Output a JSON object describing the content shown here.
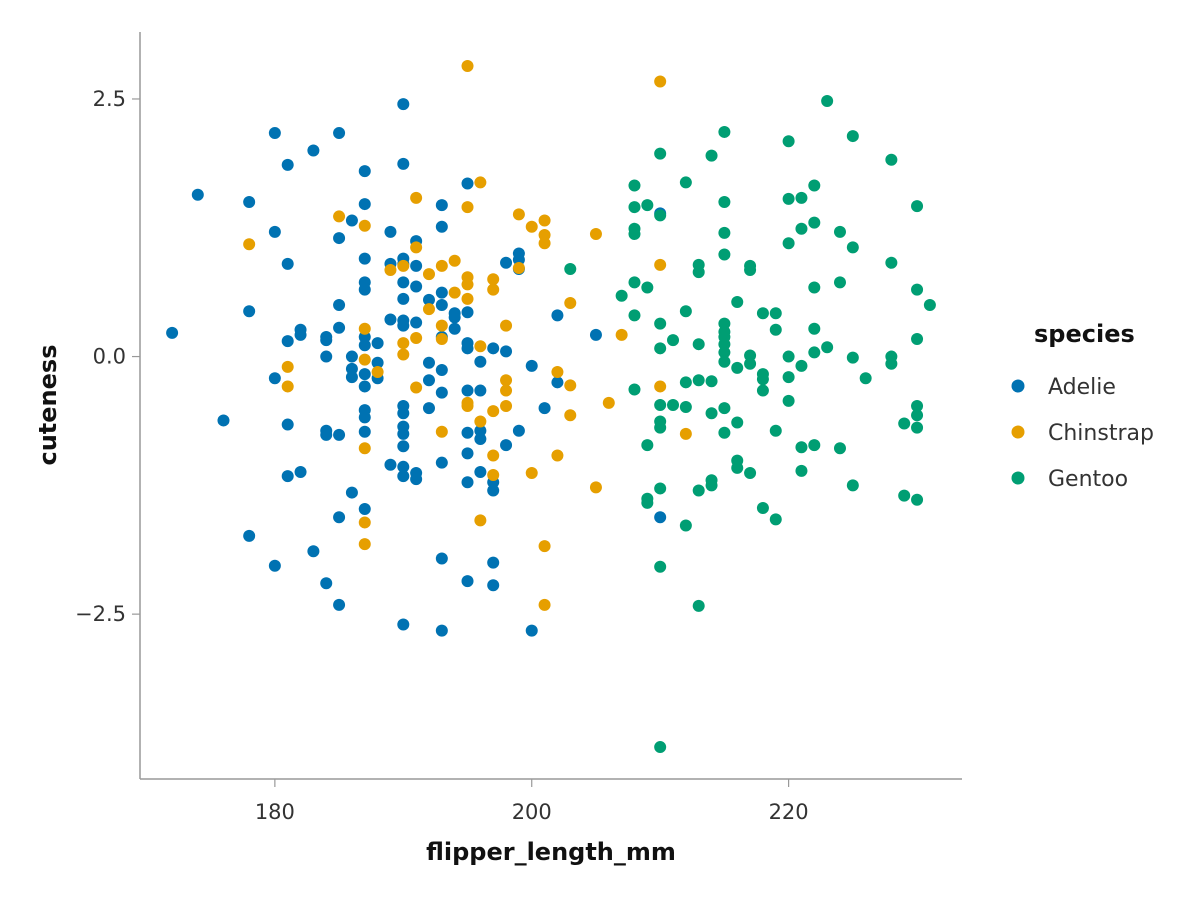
{
  "chart_data": {
    "type": "scatter",
    "title": "",
    "xlabel": "flipper_length_mm",
    "ylabel": "cuteness",
    "xlim": [
      169.5,
      233.5
    ],
    "ylim": [
      -4.1,
      3.15
    ],
    "xticks": [
      180,
      200,
      220
    ],
    "yticks": [
      2.5,
      0.0,
      -2.5
    ],
    "xtick_labels": [
      "180",
      "200",
      "220"
    ],
    "ytick_labels": [
      "2.5",
      "0.0",
      "−2.5"
    ],
    "grid": false,
    "legend": {
      "title": "species",
      "position": "right"
    },
    "series": [
      {
        "name": "Adelie",
        "color": "#0072B2",
        "points": [
          [
            172,
            0.23
          ],
          [
            174,
            1.57
          ],
          [
            176,
            -0.62
          ],
          [
            178,
            1.5
          ],
          [
            178,
            0.44
          ],
          [
            178,
            -1.74
          ],
          [
            180,
            2.17
          ],
          [
            180,
            1.21
          ],
          [
            180,
            -0.21
          ],
          [
            180,
            -2.03
          ],
          [
            181,
            1.86
          ],
          [
            181,
            0.9
          ],
          [
            181,
            0.15
          ],
          [
            181,
            -0.66
          ],
          [
            181,
            -1.16
          ],
          [
            182,
            0.26
          ],
          [
            182,
            0.21
          ],
          [
            182,
            -1.12
          ],
          [
            183,
            2.0
          ],
          [
            183,
            -1.89
          ],
          [
            184,
            0.19
          ],
          [
            184,
            0.16
          ],
          [
            184,
            0.0
          ],
          [
            184,
            -0.72
          ],
          [
            184,
            -0.76
          ],
          [
            184,
            -2.2
          ],
          [
            185,
            2.17
          ],
          [
            185,
            1.15
          ],
          [
            185,
            0.5
          ],
          [
            185,
            0.28
          ],
          [
            185,
            -0.76
          ],
          [
            185,
            -1.56
          ],
          [
            185,
            -2.41
          ],
          [
            186,
            1.32
          ],
          [
            186,
            0.0
          ],
          [
            186,
            -0.12
          ],
          [
            186,
            -0.2
          ],
          [
            186,
            -1.32
          ],
          [
            187,
            1.8
          ],
          [
            187,
            1.48
          ],
          [
            187,
            0.95
          ],
          [
            187,
            0.72
          ],
          [
            187,
            0.65
          ],
          [
            187,
            0.19
          ],
          [
            187,
            0.11
          ],
          [
            187,
            -0.17
          ],
          [
            187,
            -0.29
          ],
          [
            187,
            -0.52
          ],
          [
            187,
            -0.59
          ],
          [
            187,
            -0.73
          ],
          [
            187,
            -1.48
          ],
          [
            188,
            0.13
          ],
          [
            188,
            -0.06
          ],
          [
            188,
            -0.21
          ],
          [
            189,
            1.21
          ],
          [
            189,
            0.9
          ],
          [
            189,
            0.36
          ],
          [
            189,
            -1.05
          ],
          [
            190,
            2.45
          ],
          [
            190,
            1.87
          ],
          [
            190,
            0.95
          ],
          [
            190,
            0.9
          ],
          [
            190,
            0.72
          ],
          [
            190,
            0.56
          ],
          [
            190,
            0.35
          ],
          [
            190,
            0.3
          ],
          [
            190,
            -0.48
          ],
          [
            190,
            -0.55
          ],
          [
            190,
            -0.68
          ],
          [
            190,
            -0.75
          ],
          [
            190,
            -0.87
          ],
          [
            190,
            -1.07
          ],
          [
            190,
            -1.16
          ],
          [
            190,
            -2.6
          ],
          [
            191,
            1.12
          ],
          [
            191,
            0.88
          ],
          [
            191,
            0.68
          ],
          [
            191,
            0.33
          ],
          [
            191,
            -1.13
          ],
          [
            191,
            -1.19
          ],
          [
            192,
            0.55
          ],
          [
            192,
            -0.06
          ],
          [
            192,
            -0.23
          ],
          [
            192,
            -0.5
          ],
          [
            193,
            1.47
          ],
          [
            193,
            1.26
          ],
          [
            193,
            0.62
          ],
          [
            193,
            0.5
          ],
          [
            193,
            0.19
          ],
          [
            193,
            -0.13
          ],
          [
            193,
            -0.35
          ],
          [
            193,
            -1.03
          ],
          [
            193,
            -1.96
          ],
          [
            193,
            -2.66
          ],
          [
            194,
            0.42
          ],
          [
            194,
            0.38
          ],
          [
            194,
            0.27
          ],
          [
            195,
            1.68
          ],
          [
            195,
            0.43
          ],
          [
            195,
            0.13
          ],
          [
            195,
            0.08
          ],
          [
            195,
            -0.33
          ],
          [
            195,
            -0.74
          ],
          [
            195,
            -0.94
          ],
          [
            195,
            -1.22
          ],
          [
            195,
            -2.18
          ],
          [
            196,
            -0.05
          ],
          [
            196,
            -0.33
          ],
          [
            196,
            -0.72
          ],
          [
            196,
            -0.8
          ],
          [
            196,
            -1.12
          ],
          [
            197,
            0.08
          ],
          [
            197,
            -1.22
          ],
          [
            197,
            -1.3
          ],
          [
            197,
            -2.0
          ],
          [
            197,
            -2.22
          ],
          [
            198,
            0.91
          ],
          [
            198,
            0.05
          ],
          [
            198,
            -0.86
          ],
          [
            199,
            1.0
          ],
          [
            199,
            0.94
          ],
          [
            199,
            0.85
          ],
          [
            199,
            -0.72
          ],
          [
            200,
            -0.09
          ],
          [
            200,
            -2.66
          ],
          [
            201,
            -0.5
          ],
          [
            202,
            0.4
          ],
          [
            202,
            -0.25
          ],
          [
            205,
            0.21
          ],
          [
            210,
            1.39
          ],
          [
            210,
            -1.56
          ]
        ]
      },
      {
        "name": "Chinstrap",
        "color": "#E69F00",
        "points": [
          [
            178,
            1.09
          ],
          [
            181,
            -0.1
          ],
          [
            181,
            -0.29
          ],
          [
            185,
            1.36
          ],
          [
            187,
            1.27
          ],
          [
            187,
            0.27
          ],
          [
            187,
            -0.03
          ],
          [
            187,
            -0.89
          ],
          [
            187,
            -1.61
          ],
          [
            187,
            -1.82
          ],
          [
            188,
            -0.15
          ],
          [
            189,
            0.84
          ],
          [
            190,
            0.88
          ],
          [
            190,
            0.13
          ],
          [
            190,
            0.02
          ],
          [
            191,
            1.54
          ],
          [
            191,
            1.06
          ],
          [
            191,
            0.18
          ],
          [
            191,
            -0.3
          ],
          [
            192,
            0.8
          ],
          [
            192,
            0.46
          ],
          [
            193,
            0.88
          ],
          [
            193,
            0.3
          ],
          [
            193,
            0.17
          ],
          [
            193,
            -0.73
          ],
          [
            194,
            0.93
          ],
          [
            194,
            0.62
          ],
          [
            195,
            2.82
          ],
          [
            195,
            1.45
          ],
          [
            195,
            0.77
          ],
          [
            195,
            0.7
          ],
          [
            195,
            0.56
          ],
          [
            195,
            -0.45
          ],
          [
            195,
            -0.48
          ],
          [
            196,
            1.69
          ],
          [
            196,
            0.1
          ],
          [
            196,
            -0.63
          ],
          [
            196,
            -1.59
          ],
          [
            197,
            0.75
          ],
          [
            197,
            0.65
          ],
          [
            197,
            -0.53
          ],
          [
            197,
            -0.96
          ],
          [
            197,
            -1.15
          ],
          [
            198,
            0.3
          ],
          [
            198,
            -0.23
          ],
          [
            198,
            -0.33
          ],
          [
            198,
            -0.48
          ],
          [
            199,
            1.38
          ],
          [
            199,
            0.86
          ],
          [
            200,
            1.26
          ],
          [
            200,
            -1.13
          ],
          [
            201,
            1.32
          ],
          [
            201,
            1.18
          ],
          [
            201,
            1.1
          ],
          [
            201,
            -1.84
          ],
          [
            201,
            -2.41
          ],
          [
            202,
            -0.15
          ],
          [
            202,
            -0.96
          ],
          [
            203,
            0.52
          ],
          [
            203,
            -0.28
          ],
          [
            203,
            -0.57
          ],
          [
            205,
            1.19
          ],
          [
            205,
            -1.27
          ],
          [
            206,
            -0.45
          ],
          [
            207,
            0.21
          ],
          [
            210,
            2.67
          ],
          [
            210,
            0.89
          ],
          [
            210,
            -0.29
          ],
          [
            212,
            -0.75
          ]
        ]
      },
      {
        "name": "Gentoo",
        "color": "#009E73",
        "points": [
          [
            203,
            0.85
          ],
          [
            207,
            0.59
          ],
          [
            208,
            1.66
          ],
          [
            208,
            1.45
          ],
          [
            208,
            1.24
          ],
          [
            208,
            1.19
          ],
          [
            208,
            0.72
          ],
          [
            208,
            0.4
          ],
          [
            208,
            -0.32
          ],
          [
            209,
            1.47
          ],
          [
            209,
            0.67
          ],
          [
            209,
            -0.86
          ],
          [
            209,
            -1.38
          ],
          [
            209,
            -1.42
          ],
          [
            210,
            1.97
          ],
          [
            210,
            1.37
          ],
          [
            210,
            0.32
          ],
          [
            210,
            0.08
          ],
          [
            210,
            -0.47
          ],
          [
            210,
            -0.63
          ],
          [
            210,
            -0.69
          ],
          [
            210,
            -1.28
          ],
          [
            210,
            -2.04
          ],
          [
            210,
            -3.79
          ],
          [
            211,
            0.16
          ],
          [
            211,
            -0.47
          ],
          [
            212,
            1.69
          ],
          [
            212,
            0.44
          ],
          [
            212,
            -0.25
          ],
          [
            212,
            -0.49
          ],
          [
            212,
            -1.64
          ],
          [
            213,
            0.89
          ],
          [
            213,
            0.82
          ],
          [
            213,
            0.12
          ],
          [
            213,
            -0.23
          ],
          [
            213,
            -1.3
          ],
          [
            213,
            -2.42
          ],
          [
            214,
            1.95
          ],
          [
            214,
            -0.24
          ],
          [
            214,
            -0.55
          ],
          [
            214,
            -1.2
          ],
          [
            214,
            -1.25
          ],
          [
            215,
            2.18
          ],
          [
            215,
            1.5
          ],
          [
            215,
            1.2
          ],
          [
            215,
            0.99
          ],
          [
            215,
            0.32
          ],
          [
            215,
            0.24
          ],
          [
            215,
            0.19
          ],
          [
            215,
            0.12
          ],
          [
            215,
            0.04
          ],
          [
            215,
            -0.05
          ],
          [
            215,
            -0.5
          ],
          [
            215,
            -0.74
          ],
          [
            216,
            0.53
          ],
          [
            216,
            -0.11
          ],
          [
            216,
            -0.64
          ],
          [
            216,
            -1.01
          ],
          [
            216,
            -1.08
          ],
          [
            217,
            0.88
          ],
          [
            217,
            0.84
          ],
          [
            217,
            0.01
          ],
          [
            217,
            -0.07
          ],
          [
            217,
            -1.13
          ],
          [
            218,
            0.42
          ],
          [
            218,
            -0.17
          ],
          [
            218,
            -0.22
          ],
          [
            218,
            -0.33
          ],
          [
            218,
            -1.47
          ],
          [
            219,
            0.42
          ],
          [
            219,
            0.26
          ],
          [
            219,
            -0.72
          ],
          [
            219,
            -1.58
          ],
          [
            220,
            2.09
          ],
          [
            220,
            1.53
          ],
          [
            220,
            1.1
          ],
          [
            220,
            0.0
          ],
          [
            220,
            -0.2
          ],
          [
            220,
            -0.43
          ],
          [
            221,
            1.54
          ],
          [
            221,
            1.24
          ],
          [
            221,
            -0.09
          ],
          [
            221,
            -0.88
          ],
          [
            221,
            -1.11
          ],
          [
            222,
            1.66
          ],
          [
            222,
            1.3
          ],
          [
            222,
            0.67
          ],
          [
            222,
            0.27
          ],
          [
            222,
            0.04
          ],
          [
            222,
            -0.86
          ],
          [
            223,
            2.48
          ],
          [
            223,
            0.09
          ],
          [
            224,
            1.21
          ],
          [
            224,
            0.72
          ],
          [
            224,
            -0.89
          ],
          [
            225,
            2.14
          ],
          [
            225,
            1.06
          ],
          [
            225,
            -0.01
          ],
          [
            225,
            -1.25
          ],
          [
            226,
            -0.21
          ],
          [
            228,
            1.91
          ],
          [
            228,
            0.91
          ],
          [
            228,
            0.0
          ],
          [
            228,
            -0.07
          ],
          [
            229,
            -0.65
          ],
          [
            229,
            -1.35
          ],
          [
            230,
            1.46
          ],
          [
            230,
            0.65
          ],
          [
            230,
            0.17
          ],
          [
            230,
            -0.48
          ],
          [
            230,
            -0.57
          ],
          [
            230,
            -0.69
          ],
          [
            230,
            -1.39
          ],
          [
            231,
            0.5
          ]
        ]
      }
    ]
  }
}
